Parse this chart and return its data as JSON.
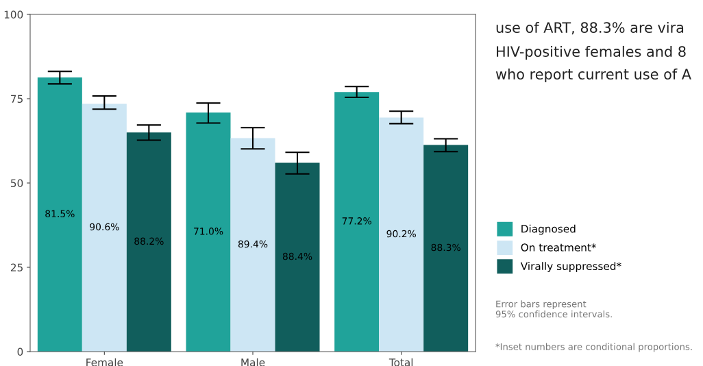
{
  "chart_data": {
    "type": "bar",
    "categories": [
      "Female",
      "Male",
      "Total"
    ],
    "series": [
      {
        "name": "Diagnosed",
        "color": "#20a39a",
        "values": [
          81.3,
          70.9,
          77.0
        ],
        "errors": [
          [
            79.4,
            83.1
          ],
          [
            67.8,
            73.7
          ],
          [
            75.4,
            78.6
          ]
        ]
      },
      {
        "name": "On treatment*",
        "color": "#cde6f4",
        "values": [
          73.5,
          63.3,
          69.4
        ],
        "errors": [
          [
            71.9,
            75.8
          ],
          [
            60.1,
            66.4
          ],
          [
            67.6,
            71.3
          ]
        ]
      },
      {
        "name": "Virally suppressed*",
        "color": "#115e5c",
        "values": [
          65.0,
          56.0,
          61.3
        ],
        "errors": [
          [
            62.7,
            67.2
          ],
          [
            52.7,
            59.1
          ],
          [
            59.3,
            63.1
          ]
        ]
      }
    ],
    "ylim": [
      0,
      100
    ],
    "yticks": [
      0,
      25,
      50,
      75,
      100
    ],
    "grid": false,
    "legend": "right",
    "annotations": [
      "81.5%",
      "90.6%",
      "88.2%",
      "71.0%",
      "89.4%",
      "88.4%",
      "77.2%",
      "90.2%",
      "88.3%",
      "use of ART, 88.3% are vira",
      "HIV-positive females and 8",
      "who report current use of A",
      "Error bars represent\n95% confidence intervals.",
      "*Inset numbers are conditional proportions."
    ]
  }
}
